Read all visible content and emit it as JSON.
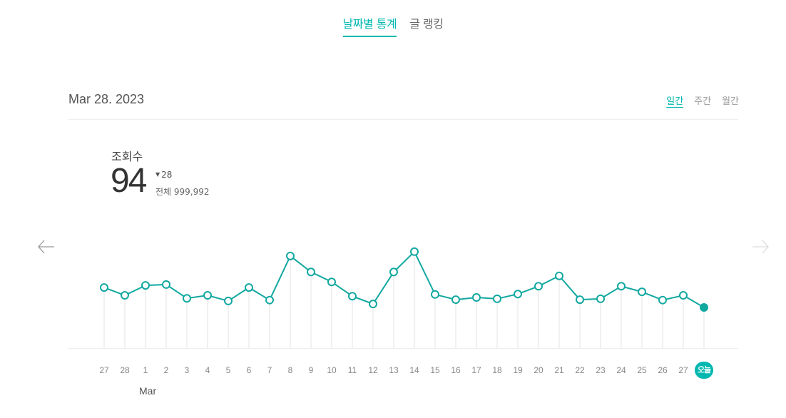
{
  "tabs": [
    {
      "label": "날짜별 통계",
      "active": true
    },
    {
      "label": "글 랭킹",
      "active": false
    }
  ],
  "header": {
    "date": "Mar 28. 2023",
    "periods": [
      {
        "label": "일간",
        "active": true
      },
      {
        "label": "주간",
        "active": false
      },
      {
        "label": "월간",
        "active": false
      }
    ]
  },
  "metric": {
    "label": "조회수",
    "value": "94",
    "delta_icon": "triangle-down-icon",
    "delta": "28",
    "total": "전체 999,992"
  },
  "nav": {
    "prev_icon": "arrow-left-icon",
    "next_icon": "arrow-right-icon"
  },
  "colors": {
    "accent": "#00b8b0",
    "line": "#12a8a0",
    "grid": "#ececec"
  },
  "month_label": "Mar",
  "chart_data": {
    "type": "line",
    "title": "조회수",
    "xlabel": "",
    "ylabel": "",
    "categories": [
      "27",
      "28",
      "1",
      "2",
      "3",
      "4",
      "5",
      "6",
      "7",
      "8",
      "9",
      "10",
      "11",
      "12",
      "13",
      "14",
      "15",
      "16",
      "17",
      "18",
      "19",
      "20",
      "21",
      "22",
      "23",
      "24",
      "25",
      "26",
      "27",
      "오늘"
    ],
    "values": [
      140,
      122,
      145,
      147,
      115,
      122,
      109,
      140,
      111,
      213,
      176,
      153,
      120,
      102,
      176,
      223,
      124,
      112,
      117,
      114,
      125,
      143,
      167,
      112,
      114,
      143,
      130,
      111,
      122,
      94
    ],
    "highlight_index": 29,
    "x_month_annotation": {
      "index": 2,
      "label": "Mar"
    },
    "grid": "vertical drop lines per point",
    "legend": "none",
    "ylim": [
      0,
      240
    ]
  }
}
